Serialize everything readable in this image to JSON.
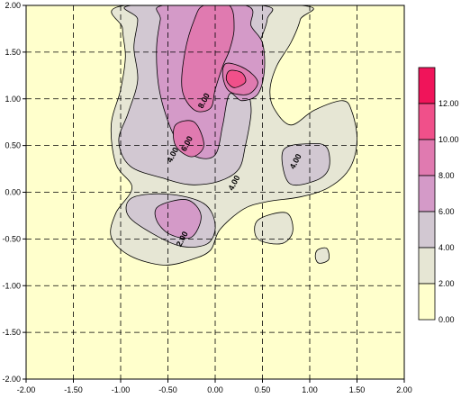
{
  "chart_data": {
    "type": "heatmap",
    "title": "",
    "xlabel": "",
    "ylabel": "",
    "xlim": [
      -2.0,
      2.0
    ],
    "ylim": [
      -2.0,
      2.0
    ],
    "x_ticks": [
      "-2.00",
      "-1.50",
      "-1.00",
      "-0.50",
      "0.00",
      "0.50",
      "1.00",
      "1.50",
      "2.00"
    ],
    "y_ticks": [
      "2.00",
      "1.50",
      "1.00",
      "0.50",
      "0.00",
      "-0.50",
      "-1.00",
      "-1.50",
      "-2.00"
    ],
    "grid": "dashed",
    "legend": {
      "placement": "right",
      "levels": [
        {
          "label": "12.00",
          "color": "#f0145a"
        },
        {
          "label": "10.00",
          "color": "#f0508a"
        },
        {
          "label": "8.00",
          "color": "#e07ab0"
        },
        {
          "label": "6.00",
          "color": "#d49ac8"
        },
        {
          "label": "4.00",
          "color": "#d2c8d2"
        },
        {
          "label": "2.00",
          "color": "#e6e6d4"
        },
        {
          "label": "0.00",
          "color": "#ffffcc"
        }
      ]
    },
    "contour_labels": [
      {
        "text": "8.00",
        "x": -0.12,
        "y": 0.98
      },
      {
        "text": "6.00",
        "x": -0.3,
        "y": 0.52
      },
      {
        "text": "4.00",
        "x": -0.45,
        "y": 0.4
      },
      {
        "text": "4.00",
        "x": 0.85,
        "y": 0.33
      },
      {
        "text": "4.00",
        "x": 0.2,
        "y": 0.1
      },
      {
        "text": "2.00",
        "x": -0.35,
        "y": -0.5
      }
    ],
    "regions": [
      {
        "level": "2.00",
        "name": "main-2-region",
        "pts": [
          [
            -0.95,
            2.0
          ],
          [
            0.9,
            2.0
          ],
          [
            0.9,
            1.85
          ],
          [
            0.8,
            1.6
          ],
          [
            0.65,
            1.35
          ],
          [
            0.58,
            1.1
          ],
          [
            0.62,
            0.9
          ],
          [
            0.8,
            0.72
          ],
          [
            1.05,
            0.88
          ],
          [
            1.35,
            0.98
          ],
          [
            1.45,
            0.85
          ],
          [
            1.5,
            0.55
          ],
          [
            1.42,
            0.25
          ],
          [
            1.2,
            0.05
          ],
          [
            0.9,
            -0.05
          ],
          [
            0.55,
            -0.1
          ],
          [
            0.3,
            -0.18
          ],
          [
            0.05,
            -0.4
          ],
          [
            -0.05,
            -0.62
          ],
          [
            -0.25,
            -0.72
          ],
          [
            -0.55,
            -0.78
          ],
          [
            -0.9,
            -0.68
          ],
          [
            -1.1,
            -0.48
          ],
          [
            -1.05,
            -0.22
          ],
          [
            -0.88,
            0.05
          ],
          [
            -1.05,
            0.3
          ],
          [
            -1.1,
            0.72
          ],
          [
            -1.0,
            1.1
          ],
          [
            -0.95,
            1.45
          ],
          [
            -0.98,
            1.75
          ]
        ]
      },
      {
        "level": "2.00",
        "name": "right-lobe-region",
        "pts": [
          [
            0.45,
            -0.3
          ],
          [
            0.75,
            -0.22
          ],
          [
            0.82,
            -0.42
          ],
          [
            0.7,
            -0.55
          ],
          [
            0.45,
            -0.5
          ]
        ]
      },
      {
        "level": "2.00",
        "name": "islet-region",
        "pts": [
          [
            1.08,
            -0.62
          ],
          [
            1.18,
            -0.6
          ],
          [
            1.2,
            -0.72
          ],
          [
            1.1,
            -0.76
          ],
          [
            1.06,
            -0.7
          ]
        ]
      },
      {
        "level": "4.00",
        "name": "main-4-region",
        "pts": [
          [
            -0.88,
            2.0
          ],
          [
            0.48,
            2.0
          ],
          [
            0.55,
            1.85
          ],
          [
            0.45,
            1.55
          ],
          [
            0.38,
            1.3
          ],
          [
            0.36,
            1.08
          ],
          [
            0.38,
            0.85
          ],
          [
            0.32,
            0.5
          ],
          [
            0.25,
            0.25
          ],
          [
            0.05,
            0.12
          ],
          [
            -0.25,
            0.08
          ],
          [
            -0.55,
            0.15
          ],
          [
            -0.9,
            0.28
          ],
          [
            -1.02,
            0.55
          ],
          [
            -0.92,
            0.85
          ],
          [
            -0.82,
            1.2
          ],
          [
            -0.86,
            1.55
          ],
          [
            -0.82,
            1.85
          ]
        ]
      },
      {
        "level": "4.00",
        "name": "center-4-region",
        "pts": [
          [
            -0.88,
            -0.06
          ],
          [
            -0.5,
            -0.02
          ],
          [
            -0.12,
            -0.12
          ],
          [
            0.0,
            -0.35
          ],
          [
            -0.08,
            -0.55
          ],
          [
            -0.35,
            -0.58
          ],
          [
            -0.65,
            -0.45
          ],
          [
            -0.92,
            -0.25
          ]
        ]
      },
      {
        "level": "4.00",
        "name": "right-4-region",
        "pts": [
          [
            0.72,
            0.45
          ],
          [
            1.0,
            0.52
          ],
          [
            1.18,
            0.48
          ],
          [
            1.2,
            0.25
          ],
          [
            1.05,
            0.12
          ],
          [
            0.78,
            0.1
          ]
        ]
      },
      {
        "level": "6.00",
        "name": "main-6-region",
        "pts": [
          [
            -0.55,
            2.0
          ],
          [
            0.32,
            2.0
          ],
          [
            0.38,
            1.78
          ],
          [
            0.5,
            1.6
          ],
          [
            0.52,
            1.3
          ],
          [
            0.45,
            1.05
          ],
          [
            0.28,
            0.98
          ],
          [
            0.15,
            1.05
          ],
          [
            0.08,
            0.72
          ],
          [
            0.0,
            0.4
          ],
          [
            -0.2,
            0.38
          ],
          [
            -0.4,
            0.55
          ],
          [
            -0.52,
            0.82
          ],
          [
            -0.6,
            1.15
          ],
          [
            -0.62,
            1.55
          ],
          [
            -0.58,
            1.85
          ]
        ]
      },
      {
        "level": "6.00",
        "name": "lower-6-region",
        "pts": [
          [
            -0.6,
            -0.15
          ],
          [
            -0.3,
            -0.08
          ],
          [
            -0.15,
            -0.25
          ],
          [
            -0.25,
            -0.48
          ],
          [
            -0.48,
            -0.45
          ],
          [
            -0.62,
            -0.3
          ]
        ]
      },
      {
        "level": "8.00",
        "name": "main-8-region",
        "pts": [
          [
            -0.12,
            2.0
          ],
          [
            0.15,
            2.0
          ],
          [
            0.2,
            1.75
          ],
          [
            0.15,
            1.52
          ],
          [
            0.08,
            1.35
          ],
          [
            0.0,
            1.1
          ],
          [
            -0.05,
            0.9
          ],
          [
            -0.22,
            0.88
          ],
          [
            -0.35,
            1.1
          ],
          [
            -0.32,
            1.5
          ],
          [
            -0.22,
            1.85
          ]
        ]
      },
      {
        "level": "8.00",
        "name": "upper-right-8-region",
        "pts": [
          [
            0.12,
            1.38
          ],
          [
            0.32,
            1.32
          ],
          [
            0.45,
            1.18
          ],
          [
            0.35,
            1.05
          ],
          [
            0.15,
            1.08
          ],
          [
            0.08,
            1.25
          ]
        ]
      },
      {
        "level": "8.00",
        "name": "mid-8-region",
        "pts": [
          [
            -0.42,
            0.72
          ],
          [
            -0.22,
            0.75
          ],
          [
            -0.12,
            0.5
          ],
          [
            -0.25,
            0.38
          ],
          [
            -0.42,
            0.5
          ]
        ]
      },
      {
        "level": "10.00",
        "name": "peak-10-region",
        "pts": [
          [
            0.15,
            1.3
          ],
          [
            0.28,
            1.28
          ],
          [
            0.32,
            1.18
          ],
          [
            0.2,
            1.12
          ],
          [
            0.12,
            1.2
          ]
        ]
      }
    ]
  }
}
